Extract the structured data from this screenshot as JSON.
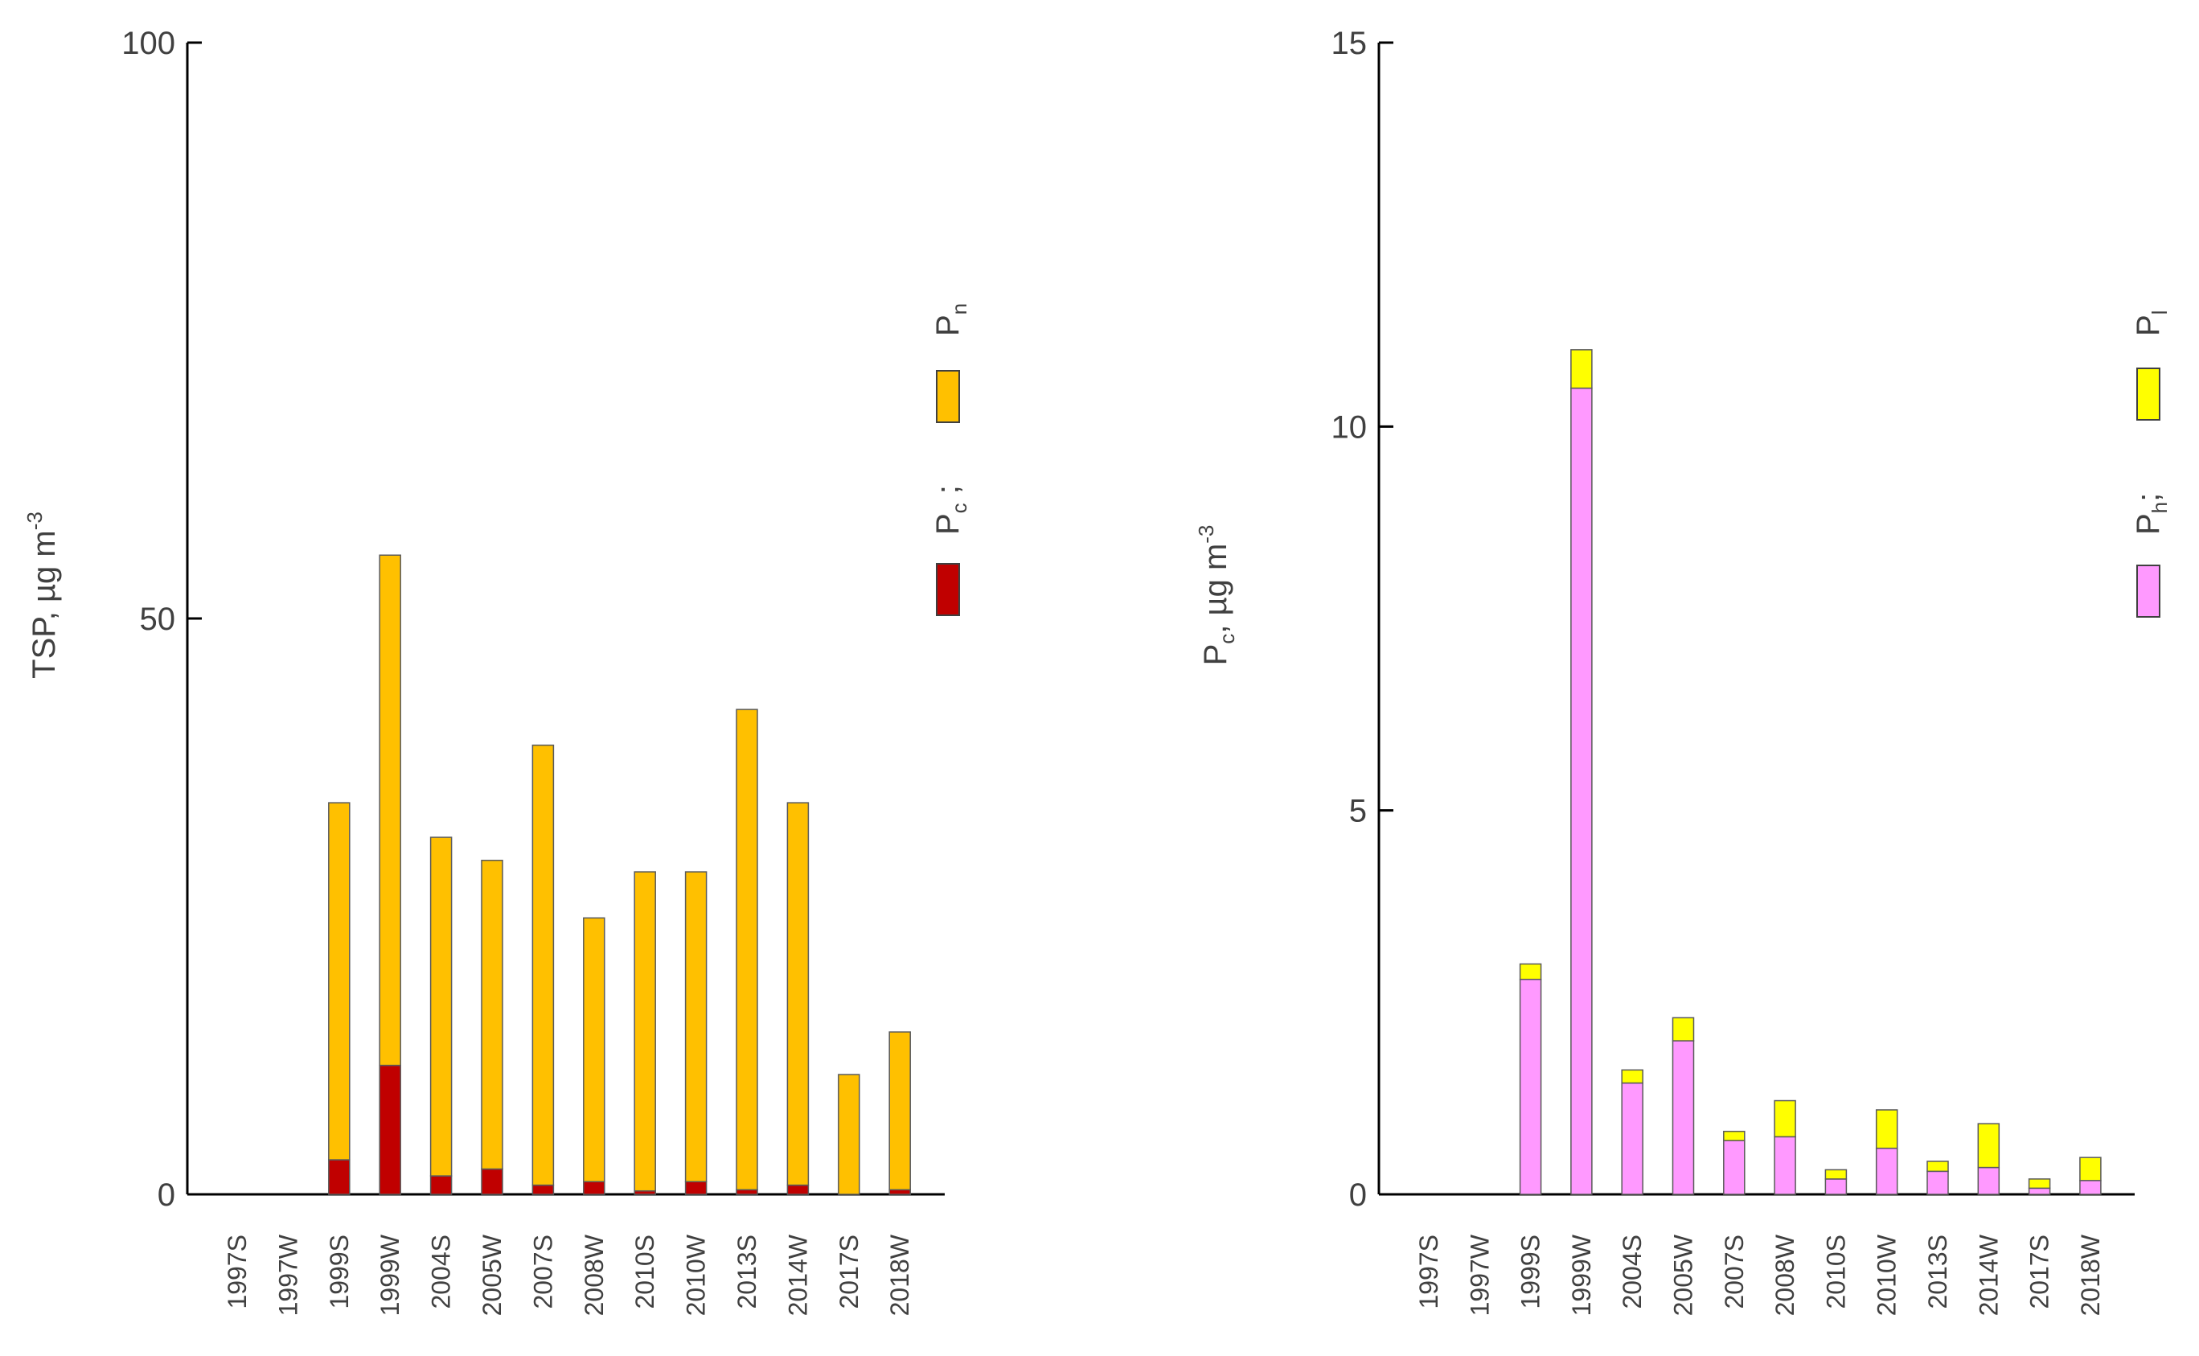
{
  "chart_data": [
    {
      "type": "bar",
      "stacked": true,
      "categories": [
        "1997S",
        "1997W",
        "1999S",
        "1999W",
        "2004S",
        "2005W",
        "2007S",
        "2008W",
        "2010S",
        "2010W",
        "2013S",
        "2014W",
        "2017S",
        "2018W"
      ],
      "series": [
        {
          "name": "Pc",
          "color": "#c00000",
          "values": [
            0,
            0,
            3.0,
            11.2,
            1.6,
            2.2,
            0.8,
            1.1,
            0.3,
            1.1,
            0.4,
            0.8,
            0.0,
            0.4
          ]
        },
        {
          "name": "Pn",
          "color": "#ffc000",
          "values": [
            0,
            0,
            31.0,
            44.3,
            29.4,
            26.8,
            38.2,
            22.9,
            27.7,
            26.9,
            41.7,
            33.2,
            10.4,
            13.7
          ]
        }
      ],
      "ylabel": "TSP, µg m",
      "ylabel_sup": "-3",
      "yticks": [
        0,
        50,
        100
      ],
      "ylim": [
        0,
        100
      ],
      "legend": {
        "Pc": {
          "main": "P",
          "sub": "c",
          "suffix": " ;"
        },
        "Pn": {
          "main": "P",
          "sub": "n",
          "suffix": ""
        }
      }
    },
    {
      "type": "bar",
      "stacked": true,
      "categories": [
        "1997S",
        "1997W",
        "1999S",
        "1999W",
        "2004S",
        "2005W",
        "2007S",
        "2008W",
        "2010S",
        "2010W",
        "2013S",
        "2014W",
        "2017S",
        "2018W"
      ],
      "series": [
        {
          "name": "Ph",
          "color": "#ff99ff",
          "values": [
            0,
            0,
            2.8,
            10.5,
            1.45,
            2.0,
            0.7,
            0.75,
            0.2,
            0.6,
            0.3,
            0.35,
            0.08,
            0.18
          ]
        },
        {
          "name": "Pl",
          "color": "#ffff00",
          "values": [
            0,
            0,
            0.2,
            0.5,
            0.17,
            0.3,
            0.12,
            0.47,
            0.12,
            0.5,
            0.13,
            0.57,
            0.12,
            0.3
          ]
        }
      ],
      "ylabel": "P",
      "ylabel_sub": "c",
      "ylabel_rest": ", µg m",
      "ylabel_sup": "-3",
      "yticks": [
        0,
        5,
        10,
        15
      ],
      "ylim": [
        0,
        15
      ],
      "legend": {
        "Ph": {
          "main": "P",
          "sub": "h",
          "suffix": ";"
        },
        "Pl": {
          "main": "P",
          "sub": "l",
          "suffix": ""
        }
      }
    }
  ]
}
